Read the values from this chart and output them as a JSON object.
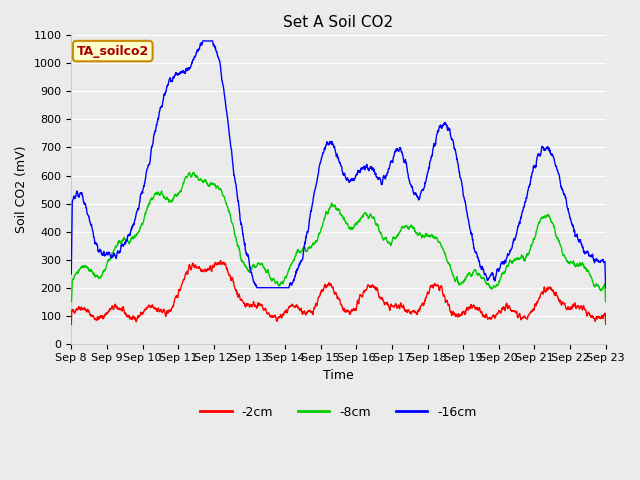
{
  "title": "Set A Soil CO2",
  "xlabel": "Time",
  "ylabel": "Soil CO2 (mV)",
  "ylim": [
    0,
    1100
  ],
  "bg_color": "#e8e8e8",
  "grid_color": "#ffffff",
  "legend_label": "TA_soilco2",
  "series_labels": [
    "-2cm",
    "-8cm",
    "-16cm"
  ],
  "series_colors": [
    "#ff0000",
    "#00cc00",
    "#0000ff"
  ],
  "tick_labels": [
    "Sep 8",
    "Sep 9",
    "Sep 10",
    "Sep 11",
    "Sep 12",
    "Sep 13",
    "Sep 14",
    "Sep 15",
    "Sep 16",
    "Sep 17",
    "Sep 18",
    "Sep 19",
    "Sep 20",
    "Sep 21",
    "Sep 22",
    "Sep 23"
  ],
  "title_fontsize": 11,
  "axis_fontsize": 9,
  "tick_fontsize": 8,
  "legend_fontsize": 9,
  "linewidth": 1.0
}
